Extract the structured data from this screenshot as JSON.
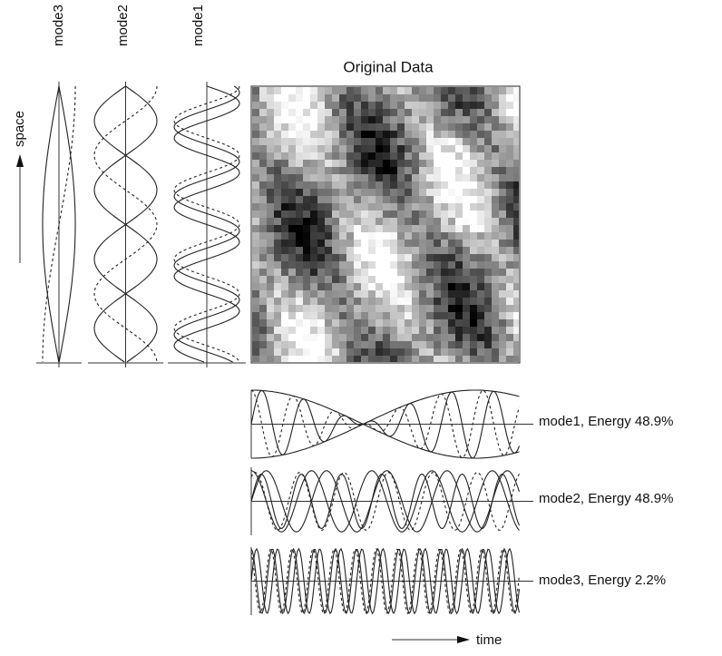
{
  "column_labels": [
    "mode3",
    "mode2",
    "mode1"
  ],
  "axis_labels": {
    "space": "space",
    "time": "time"
  },
  "image_title": "Original Data",
  "mode_labels": [
    "mode1,  Energy 48.9%",
    "mode2,  Energy 48.9%",
    "mode3,  Energy  2.2%"
  ]
}
